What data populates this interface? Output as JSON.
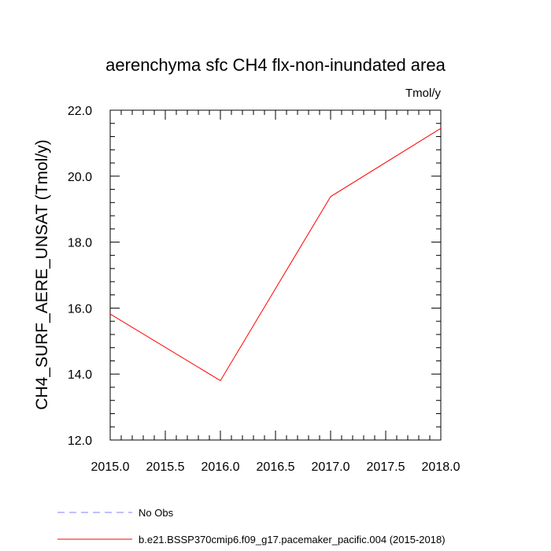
{
  "chart_data": {
    "type": "line",
    "title": "aerenchyma sfc CH4 flx-non-inundated area",
    "units_label": "Tmol/y",
    "ylabel": "CH4_SURF_AERE_UNSAT  (Tmol/y)",
    "xlabel": "",
    "xlim": [
      2015.0,
      2018.0
    ],
    "ylim": [
      12.0,
      22.0
    ],
    "x_ticks": [
      "2015.0",
      "2015.5",
      "2016.0",
      "2016.5",
      "2017.0",
      "2017.5",
      "2018.0"
    ],
    "y_ticks": [
      "12.0",
      "14.0",
      "16.0",
      "18.0",
      "20.0",
      "22.0"
    ],
    "grid": false,
    "legend_position": "bottom",
    "series": [
      {
        "name": "No Obs",
        "color": "#8080ff",
        "style": "dashed",
        "x": [],
        "y": []
      },
      {
        "name": "b.e21.BSSP370cmip6.f09_g17.pacemaker_pacific.004 (2015-2018)",
        "color": "#ff0000",
        "style": "solid",
        "x": [
          2015,
          2016,
          2017,
          2018
        ],
        "y": [
          15.82,
          13.8,
          19.38,
          21.45
        ]
      }
    ]
  }
}
